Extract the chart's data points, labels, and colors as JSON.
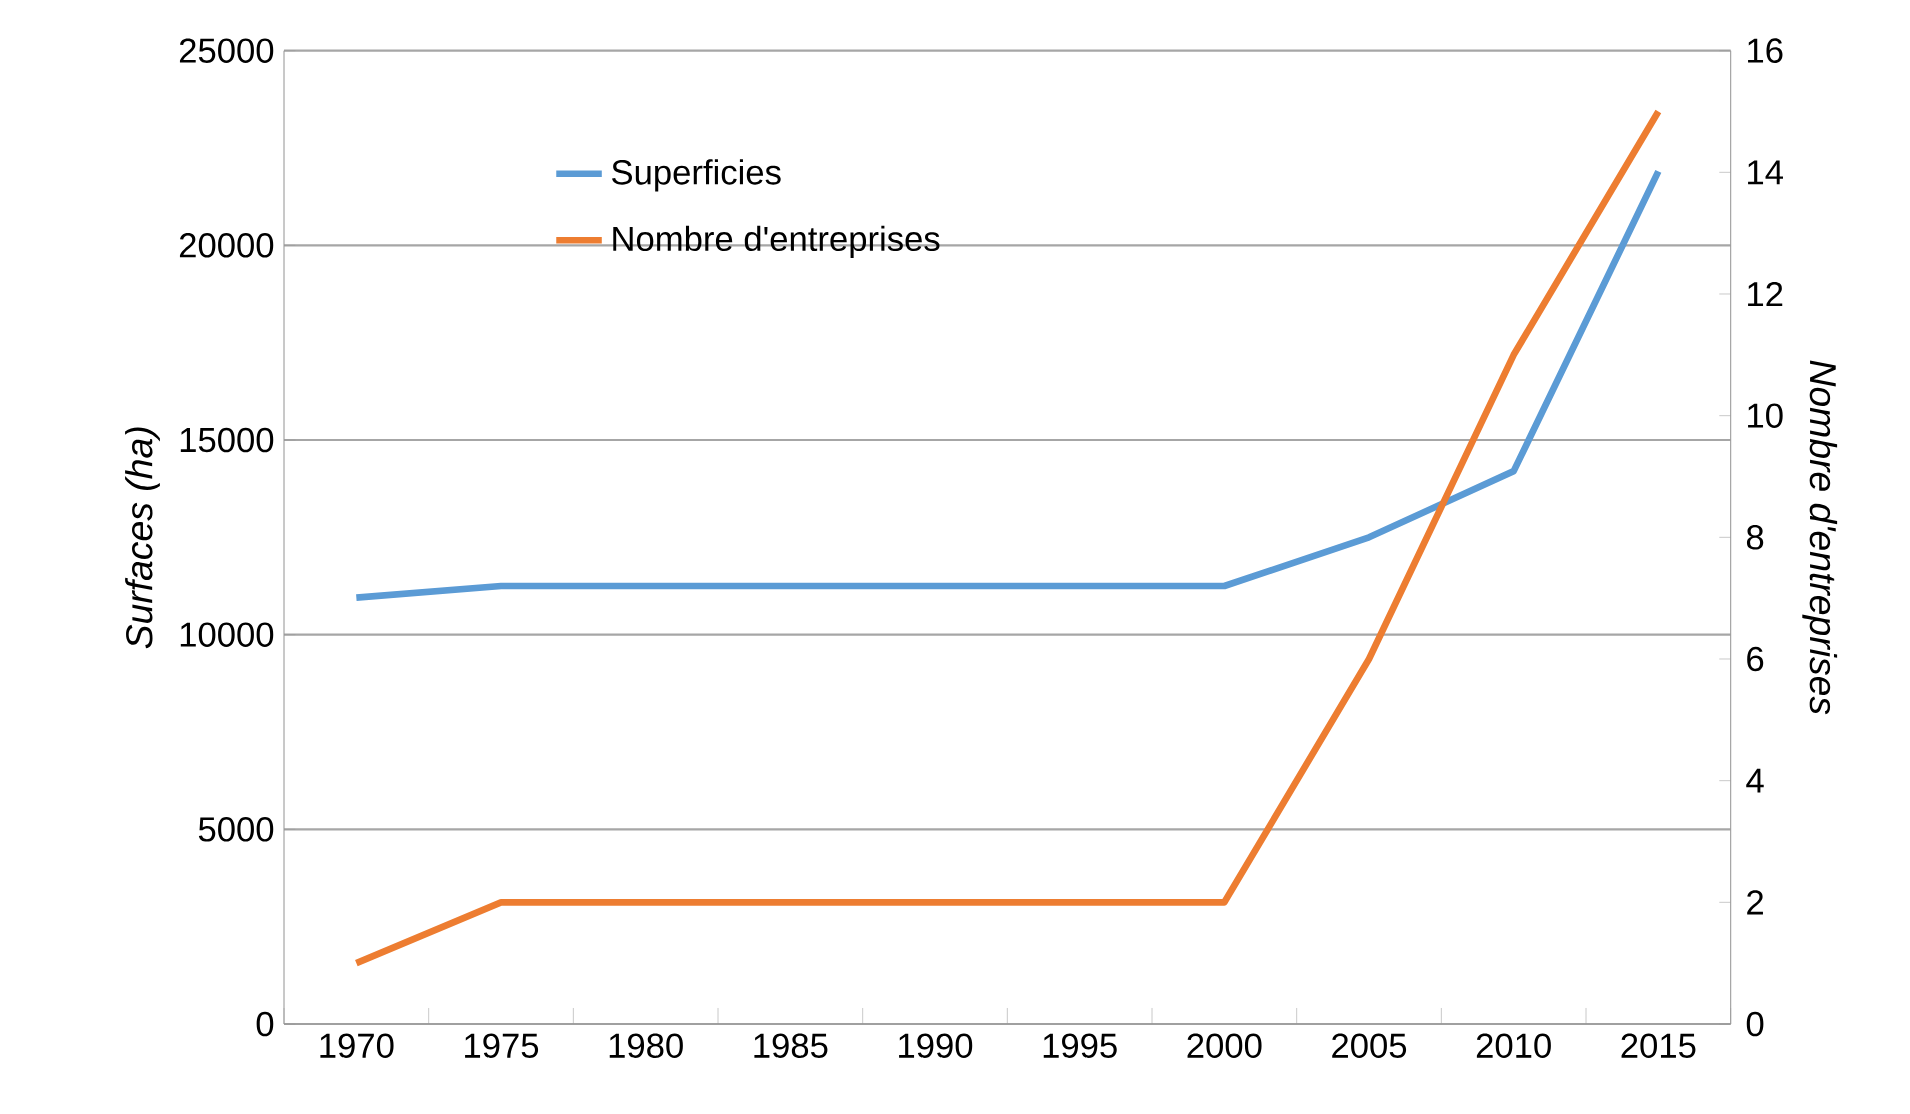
{
  "chart_data": {
    "type": "line",
    "categories": [
      "1970",
      "1975",
      "1980",
      "1985",
      "1990",
      "1995",
      "2000",
      "2005",
      "2010",
      "2015"
    ],
    "ylabel": "Surfaces (ha)",
    "y2label": "Nombre d'entreprises",
    "ylim": [
      0,
      25000
    ],
    "yticks": [
      0,
      5000,
      10000,
      15000,
      20000,
      25000
    ],
    "y2lim": [
      0,
      16
    ],
    "y2ticks": [
      0,
      2,
      4,
      6,
      8,
      10,
      12,
      14,
      16
    ],
    "grid": "y",
    "legend": "top left",
    "line_style": "solid",
    "series": [
      {
        "name": "Superficies",
        "color": "#5b9bd5",
        "values": [
          10950,
          11250,
          11250,
          11250,
          11250,
          11250,
          11250,
          12500,
          14200,
          21900
        ]
      },
      {
        "name": "Nombre d'entreprises",
        "color": "#ed7d31",
        "axis": "y2",
        "values": [
          1,
          2,
          2,
          2,
          2,
          2,
          2,
          6,
          11,
          15
        ]
      }
    ]
  }
}
